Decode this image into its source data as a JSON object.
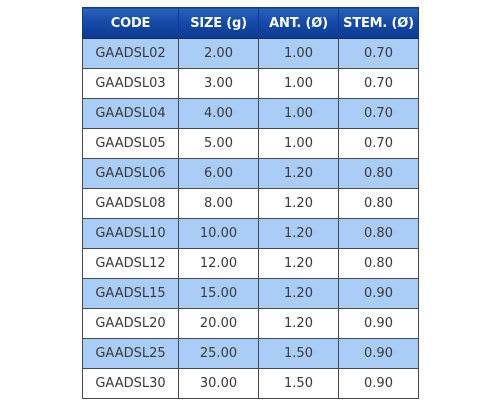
{
  "table": {
    "headers": [
      "CODE",
      "SIZE (g)",
      "ANT. (Ø)",
      "STEM. (Ø)"
    ],
    "colors": {
      "header": "#154ba8",
      "row_alt": "#a9cdf7",
      "row": "#ffffff",
      "text": "#3a3a3a"
    },
    "rows": [
      [
        "GAADSL02",
        "2.00",
        "1.00",
        "0.70"
      ],
      [
        "GAADSL03",
        "3.00",
        "1.00",
        "0.70"
      ],
      [
        "GAADSL04",
        "4.00",
        "1.00",
        "0.70"
      ],
      [
        "GAADSL05",
        "5.00",
        "1.00",
        "0.70"
      ],
      [
        "GAADSL06",
        "6.00",
        "1.20",
        "0.80"
      ],
      [
        "GAADSL08",
        "8.00",
        "1.20",
        "0.80"
      ],
      [
        "GAADSL10",
        "10.00",
        "1.20",
        "0.80"
      ],
      [
        "GAADSL12",
        "12.00",
        "1.20",
        "0.80"
      ],
      [
        "GAADSL15",
        "15.00",
        "1.20",
        "0.90"
      ],
      [
        "GAADSL20",
        "20.00",
        "1.20",
        "0.90"
      ],
      [
        "GAADSL25",
        "25.00",
        "1.50",
        "0.90"
      ],
      [
        "GAADSL30",
        "30.00",
        "1.50",
        "0.90"
      ]
    ]
  }
}
